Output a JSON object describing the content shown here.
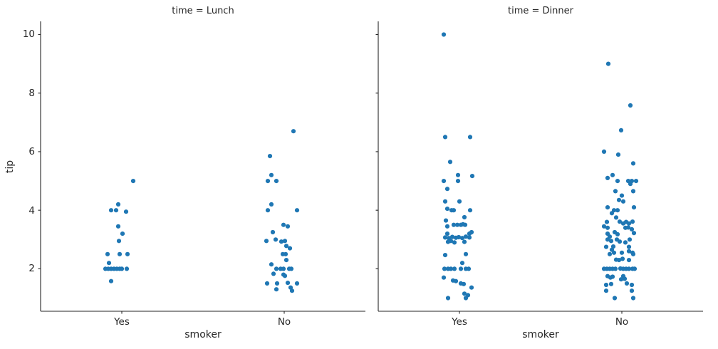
{
  "figure": {
    "background": "#ffffff"
  },
  "chart_data": {
    "type": "scatter",
    "subtype": "strip-categorical",
    "xlabel": "smoker",
    "ylabel": "tip",
    "yticks": [
      10,
      8,
      6,
      4,
      2
    ],
    "ytick_labels": [
      "10",
      "8",
      "6",
      "4",
      "2"
    ],
    "ylim": [
      0.55,
      10.45
    ],
    "grid": false,
    "legend": "none",
    "point_color": "#1f77b4",
    "axis_color": "#262626",
    "facets": [
      {
        "title": "time = Lunch",
        "categories": [
          "Yes",
          "No"
        ],
        "series": [
          {
            "category": "Yes",
            "points": [
              [
                16,
                5.0
              ],
              [
                -5,
                4.2
              ],
              [
                -15,
                4.0
              ],
              [
                -8,
                4.0
              ],
              [
                6,
                3.95
              ],
              [
                -5,
                3.45
              ],
              [
                1,
                3.2
              ],
              [
                -4,
                2.95
              ],
              [
                -20,
                2.5
              ],
              [
                -3,
                2.5
              ],
              [
                8,
                2.5
              ],
              [
                -18,
                2.2
              ],
              [
                -23,
                2.0
              ],
              [
                -19,
                2.0
              ],
              [
                -15,
                2.0
              ],
              [
                -11,
                2.0
              ],
              [
                -7,
                2.0
              ],
              [
                -3,
                2.0
              ],
              [
                0,
                2.0
              ],
              [
                7,
                2.0
              ],
              [
                -15,
                1.58
              ]
            ]
          },
          {
            "category": "No",
            "points": [
              [
                13,
                6.7
              ],
              [
                -20,
                5.85
              ],
              [
                -18,
                5.2
              ],
              [
                -23,
                5.0
              ],
              [
                -11,
                5.0
              ],
              [
                -18,
                4.2
              ],
              [
                -23,
                4.0
              ],
              [
                18,
                4.0
              ],
              [
                -1,
                3.5
              ],
              [
                5,
                3.45
              ],
              [
                -16,
                3.25
              ],
              [
                -25,
                2.95
              ],
              [
                -12,
                3.0
              ],
              [
                -4,
                2.93
              ],
              [
                1,
                2.95
              ],
              [
                3,
                2.78
              ],
              [
                8,
                2.7
              ],
              [
                -2,
                2.5
              ],
              [
                2,
                2.5
              ],
              [
                3,
                2.3
              ],
              [
                -18,
                2.15
              ],
              [
                -11,
                2.0
              ],
              [
                -5,
                2.0
              ],
              [
                -1,
                2.0
              ],
              [
                7,
                2.0
              ],
              [
                10,
                2.0
              ],
              [
                -15,
                1.83
              ],
              [
                -1,
                1.8
              ],
              [
                1,
                1.76
              ],
              [
                -24,
                1.5
              ],
              [
                -10,
                1.5
              ],
              [
                5,
                1.52
              ],
              [
                18,
                1.5
              ],
              [
                -11,
                1.3
              ],
              [
                9,
                1.36
              ],
              [
                11,
                1.25
              ]
            ]
          }
        ]
      },
      {
        "title": "time = Dinner",
        "categories": [
          "Yes",
          "No"
        ],
        "series": [
          {
            "category": "Yes",
            "points": [
              [
                -22,
                10.0
              ],
              [
                -20,
                6.5
              ],
              [
                15,
                6.5
              ],
              [
                -13,
                5.65
              ],
              [
                -2,
                5.2
              ],
              [
                18,
                5.17
              ],
              [
                -22,
                5.0
              ],
              [
                -2,
                5.0
              ],
              [
                -17,
                4.73
              ],
              [
                -20,
                4.3
              ],
              [
                0,
                4.3
              ],
              [
                -17,
                4.05
              ],
              [
                -11,
                4.0
              ],
              [
                -8,
                4.0
              ],
              [
                15,
                4.0
              ],
              [
                7,
                3.76
              ],
              [
                -19,
                3.65
              ],
              [
                -17,
                3.45
              ],
              [
                -8,
                3.5
              ],
              [
                -3,
                3.5
              ],
              [
                2,
                3.5
              ],
              [
                5,
                3.52
              ],
              [
                8,
                3.5
              ],
              [
                17,
                3.25
              ],
              [
                14,
                3.2
              ],
              [
                -17,
                3.2
              ],
              [
                -20,
                3.07
              ],
              [
                -15,
                3.05
              ],
              [
                -10,
                3.09
              ],
              [
                -5,
                3.06
              ],
              [
                -1,
                3.08
              ],
              [
                4,
                3.05
              ],
              [
                9,
                3.1
              ],
              [
                14,
                3.07
              ],
              [
                -16,
                2.92
              ],
              [
                -12,
                2.95
              ],
              [
                -7,
                2.9
              ],
              [
                7,
                2.92
              ],
              [
                -20,
                2.47
              ],
              [
                9,
                2.5
              ],
              [
                4,
                2.2
              ],
              [
                -21,
                2.0
              ],
              [
                -16,
                2.0
              ],
              [
                -12,
                2.0
              ],
              [
                -7,
                2.0
              ],
              [
                2,
                2.0
              ],
              [
                9,
                2.0
              ],
              [
                13,
                2.0
              ],
              [
                -22,
                1.7
              ],
              [
                -9,
                1.6
              ],
              [
                -5,
                1.58
              ],
              [
                2,
                1.5
              ],
              [
                6,
                1.48
              ],
              [
                17,
                1.36
              ],
              [
                7,
                1.15
              ],
              [
                12,
                1.1
              ],
              [
                -16,
                1.0
              ],
              [
                9,
                1.0
              ]
            ]
          },
          {
            "category": "No",
            "points": [
              [
                -19,
                9.0
              ],
              [
                12,
                7.58
              ],
              [
                -1,
                6.73
              ],
              [
                -25,
                6.0
              ],
              [
                -5,
                5.9
              ],
              [
                16,
                5.6
              ],
              [
                -13,
                5.2
              ],
              [
                -20,
                5.1
              ],
              [
                -6,
                5.0
              ],
              [
                9,
                5.0
              ],
              [
                14,
                5.0
              ],
              [
                20,
                5.0
              ],
              [
                12,
                4.9
              ],
              [
                -9,
                4.65
              ],
              [
                16,
                4.65
              ],
              [
                0,
                4.5
              ],
              [
                -4,
                4.35
              ],
              [
                2,
                4.3
              ],
              [
                -20,
                4.1
              ],
              [
                17,
                4.1
              ],
              [
                -11,
                4.0
              ],
              [
                -6,
                4.0
              ],
              [
                -14,
                3.9
              ],
              [
                -8,
                3.75
              ],
              [
                -21,
                3.6
              ],
              [
                -3,
                3.61
              ],
              [
                2,
                3.55
              ],
              [
                6,
                3.6
              ],
              [
                10,
                3.55
              ],
              [
                15,
                3.61
              ],
              [
                -25,
                3.45
              ],
              [
                -20,
                3.4
              ],
              [
                5,
                3.4
              ],
              [
                9,
                3.41
              ],
              [
                14,
                3.35
              ],
              [
                -20,
                3.2
              ],
              [
                -17,
                3.1
              ],
              [
                -10,
                3.25
              ],
              [
                -6,
                3.18
              ],
              [
                17,
                3.22
              ],
              [
                -20,
                3.0
              ],
              [
                -15,
                2.95
              ],
              [
                -7,
                3.0
              ],
              [
                -3,
                2.93
              ],
              [
                5,
                2.9
              ],
              [
                11,
                3.0
              ],
              [
                -22,
                2.75
              ],
              [
                -12,
                2.76
              ],
              [
                10,
                2.75
              ],
              [
                -14,
                2.65
              ],
              [
                -11,
                2.55
              ],
              [
                -17,
                2.5
              ],
              [
                0,
                2.55
              ],
              [
                10,
                2.6
              ],
              [
                15,
                2.55
              ],
              [
                16,
                2.5
              ],
              [
                -8,
                2.31
              ],
              [
                -4,
                2.3
              ],
              [
                1,
                2.34
              ],
              [
                10,
                2.3
              ],
              [
                -25,
                2.0
              ],
              [
                -21,
                2.0
              ],
              [
                -17,
                2.0
              ],
              [
                -13,
                2.0
              ],
              [
                -9,
                2.0
              ],
              [
                -2,
                2.01
              ],
              [
                2,
                2.0
              ],
              [
                6,
                2.0
              ],
              [
                10,
                2.0
              ],
              [
                15,
                2.0
              ],
              [
                18,
                2.0
              ],
              [
                -20,
                1.75
              ],
              [
                -16,
                1.7
              ],
              [
                -13,
                1.73
              ],
              [
                2,
                1.75
              ],
              [
                4,
                1.66
              ],
              [
                -1,
                1.64
              ],
              [
                -22,
                1.45
              ],
              [
                -15,
                1.48
              ],
              [
                7,
                1.5
              ],
              [
                14,
                1.45
              ],
              [
                -22,
                1.25
              ],
              [
                14,
                1.25
              ],
              [
                -10,
                1.0
              ],
              [
                16,
                1.0
              ]
            ]
          }
        ]
      }
    ]
  }
}
